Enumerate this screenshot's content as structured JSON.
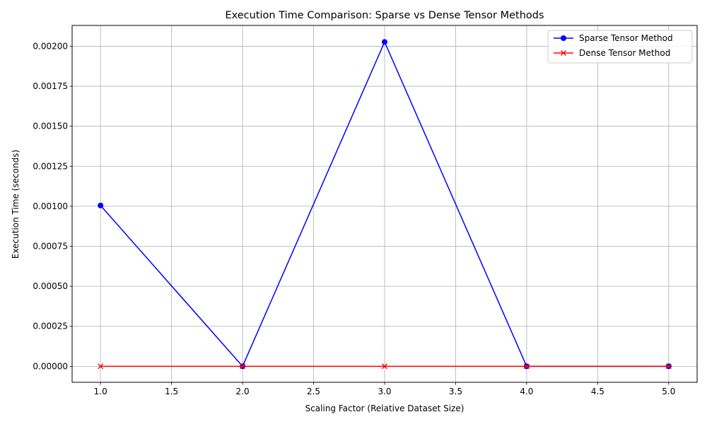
{
  "chart_data": {
    "type": "line",
    "title": "Execution Time Comparison: Sparse vs Dense Tensor Methods",
    "xlabel": "Scaling Factor (Relative Dataset Size)",
    "ylabel": "Execution Time (seconds)",
    "xlim": [
      0.8,
      5.2
    ],
    "ylim": [
      -0.0001,
      0.00213
    ],
    "x": [
      1,
      2,
      3,
      4,
      5
    ],
    "xticks": [
      1.0,
      1.5,
      2.0,
      2.5,
      3.0,
      3.5,
      4.0,
      4.5,
      5.0
    ],
    "xtick_labels": [
      "1.0",
      "1.5",
      "2.0",
      "2.5",
      "3.0",
      "3.5",
      "4.0",
      "4.5",
      "5.0"
    ],
    "yticks": [
      0,
      0.00025,
      0.0005,
      0.00075,
      0.001,
      0.00125,
      0.0015,
      0.00175,
      0.002
    ],
    "ytick_labels": [
      "0.00000",
      "0.00025",
      "0.00050",
      "0.00075",
      "0.00100",
      "0.00125",
      "0.00150",
      "0.00175",
      "0.00200"
    ],
    "grid": true,
    "legend_position": "top-right",
    "series": [
      {
        "name": "Sparse Tensor Method",
        "color": "#0000ff",
        "marker": "circle",
        "values": [
          0.001005,
          0.0,
          0.002027,
          0.0,
          0.0
        ]
      },
      {
        "name": "Dense Tensor Method",
        "color": "#ff0000",
        "marker": "x",
        "values": [
          0.0,
          0.0,
          0.0,
          0.0,
          0.0
        ]
      }
    ]
  }
}
